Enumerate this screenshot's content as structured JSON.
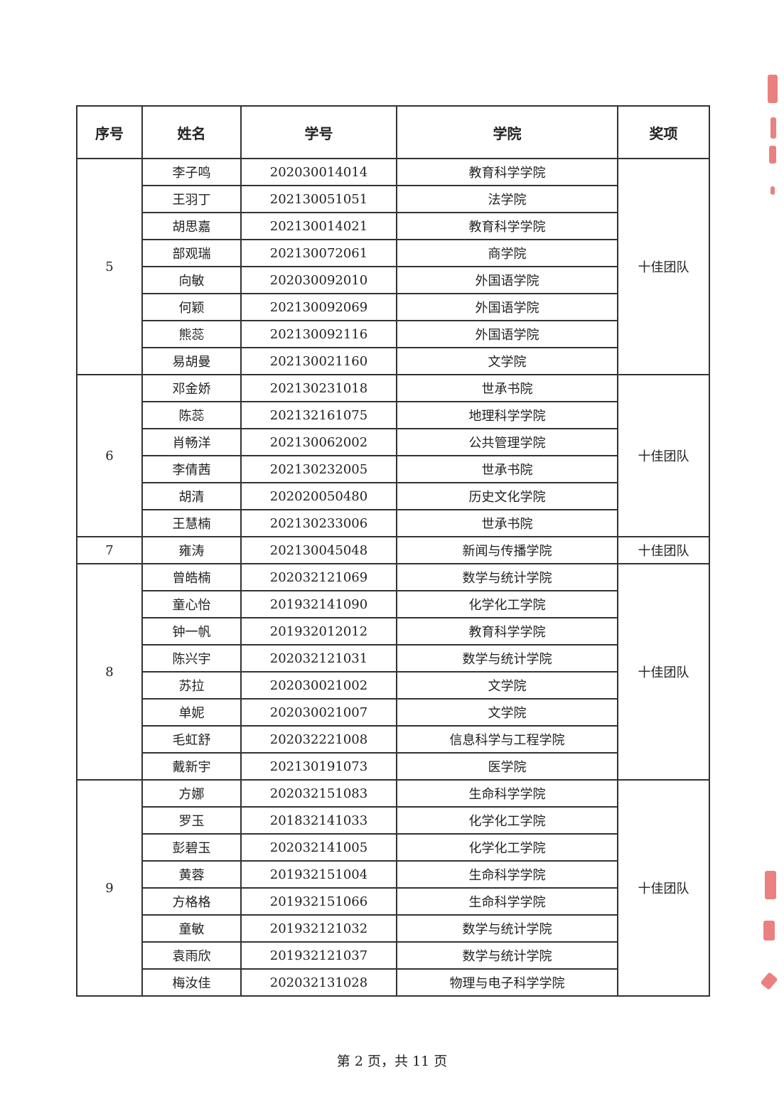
{
  "table": {
    "headers": [
      "序号",
      "姓名",
      "学号",
      "学院",
      "奖项"
    ],
    "groups": [
      {
        "index": "5",
        "award": "十佳团队",
        "members": [
          {
            "name": "李子鸣",
            "id": "202030014014",
            "college": "教育科学学院"
          },
          {
            "name": "王羽丁",
            "id": "202130051051",
            "college": "法学院"
          },
          {
            "name": "胡思嘉",
            "id": "202130014021",
            "college": "教育科学学院"
          },
          {
            "name": "部观瑞",
            "id": "202130072061",
            "college": "商学院"
          },
          {
            "name": "向敏",
            "id": "202030092010",
            "college": "外国语学院"
          },
          {
            "name": "何颖",
            "id": "202130092069",
            "college": "外国语学院"
          },
          {
            "name": "熊蕊",
            "id": "202130092116",
            "college": "外国语学院"
          },
          {
            "name": "易胡曼",
            "id": "202130021160",
            "college": "文学院"
          }
        ]
      },
      {
        "index": "6",
        "award": "十佳团队",
        "members": [
          {
            "name": "邓金娇",
            "id": "202130231018",
            "college": "世承书院"
          },
          {
            "name": "陈蕊",
            "id": "202132161075",
            "college": "地理科学学院"
          },
          {
            "name": "肖畅洋",
            "id": "202130062002",
            "college": "公共管理学院"
          },
          {
            "name": "李倩茜",
            "id": "202130232005",
            "college": "世承书院"
          },
          {
            "name": "胡清",
            "id": "202020050480",
            "college": "历史文化学院"
          },
          {
            "name": "王慧楠",
            "id": "202130233006",
            "college": "世承书院"
          }
        ]
      },
      {
        "index": "7",
        "award": "十佳团队",
        "members": [
          {
            "name": "雍涛",
            "id": "202130045048",
            "college": "新闻与传播学院"
          }
        ]
      },
      {
        "index": "8",
        "award": "十佳团队",
        "members": [
          {
            "name": "曾皓楠",
            "id": "202032121069",
            "college": "数学与统计学院"
          },
          {
            "name": "童心怡",
            "id": "201932141090",
            "college": "化学化工学院"
          },
          {
            "name": "钟一帆",
            "id": "201932012012",
            "college": "教育科学学院"
          },
          {
            "name": "陈兴宇",
            "id": "202032121031",
            "college": "数学与统计学院"
          },
          {
            "name": "苏拉",
            "id": "202030021002",
            "college": "文学院"
          },
          {
            "name": "单妮",
            "id": "202030021007",
            "college": "文学院"
          },
          {
            "name": "毛虹舒",
            "id": "202032221008",
            "college": "信息科学与工程学院"
          },
          {
            "name": "戴新宇",
            "id": "202130191073",
            "college": "医学院"
          }
        ]
      },
      {
        "index": "9",
        "award": "十佳团队",
        "members": [
          {
            "name": "方娜",
            "id": "202032151083",
            "college": "生命科学学院"
          },
          {
            "name": "罗玉",
            "id": "201832141033",
            "college": "化学化工学院"
          },
          {
            "name": "彭碧玉",
            "id": "202032141005",
            "college": "化学化工学院"
          },
          {
            "name": "黄蓉",
            "id": "201932151004",
            "college": "生命科学学院"
          },
          {
            "name": "方格格",
            "id": "201932151066",
            "college": "生命科学学院"
          },
          {
            "name": "童敏",
            "id": "201932121032",
            "college": "数学与统计学院"
          },
          {
            "name": "袁雨欣",
            "id": "201932121037",
            "college": "数学与统计学院"
          },
          {
            "name": "梅汝佳",
            "id": "202032131028",
            "college": "物理与电子科学学院"
          }
        ]
      }
    ]
  },
  "footer": {
    "page_text": "第 2 页，共 11 页"
  },
  "colors": {
    "stamp": "#e24a4a"
  }
}
